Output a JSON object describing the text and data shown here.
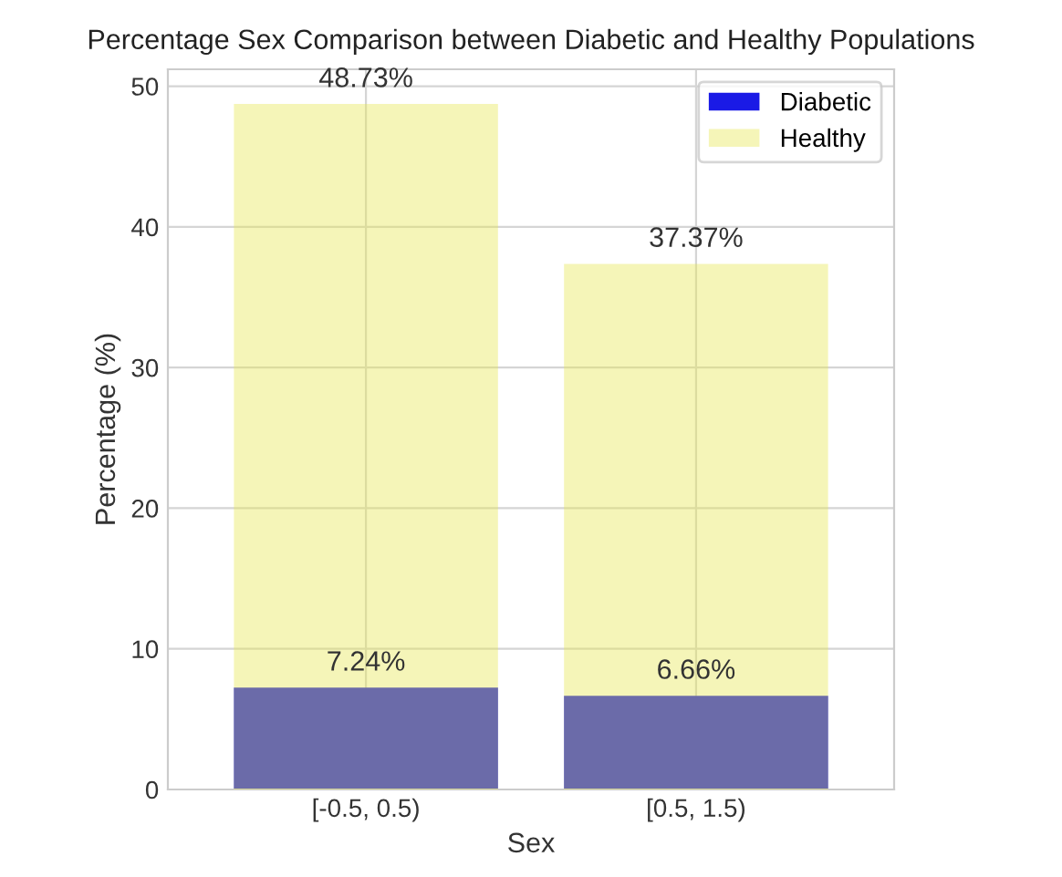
{
  "chart_data": {
    "type": "bar",
    "title": "Percentage Sex Comparison between Diabetic and Healthy Populations",
    "xlabel": "Sex",
    "ylabel": "Percentage (%)",
    "categories": [
      "[-0.5, 0.5)",
      "[0.5, 1.5)"
    ],
    "series": [
      {
        "name": "Diabetic",
        "color": "#1a1ae6",
        "values": [
          7.24,
          6.66
        ],
        "value_labels": [
          "7.24%",
          "6.66%"
        ]
      },
      {
        "name": "Healthy",
        "color": "#e6e64d",
        "values": [
          48.73,
          37.37
        ],
        "value_labels": [
          "48.73%",
          "37.37%"
        ]
      }
    ],
    "ylim": [
      0,
      51.2
    ],
    "yticks": [
      0,
      10,
      20,
      30,
      40,
      50
    ],
    "grid": true,
    "legend": "top right"
  }
}
